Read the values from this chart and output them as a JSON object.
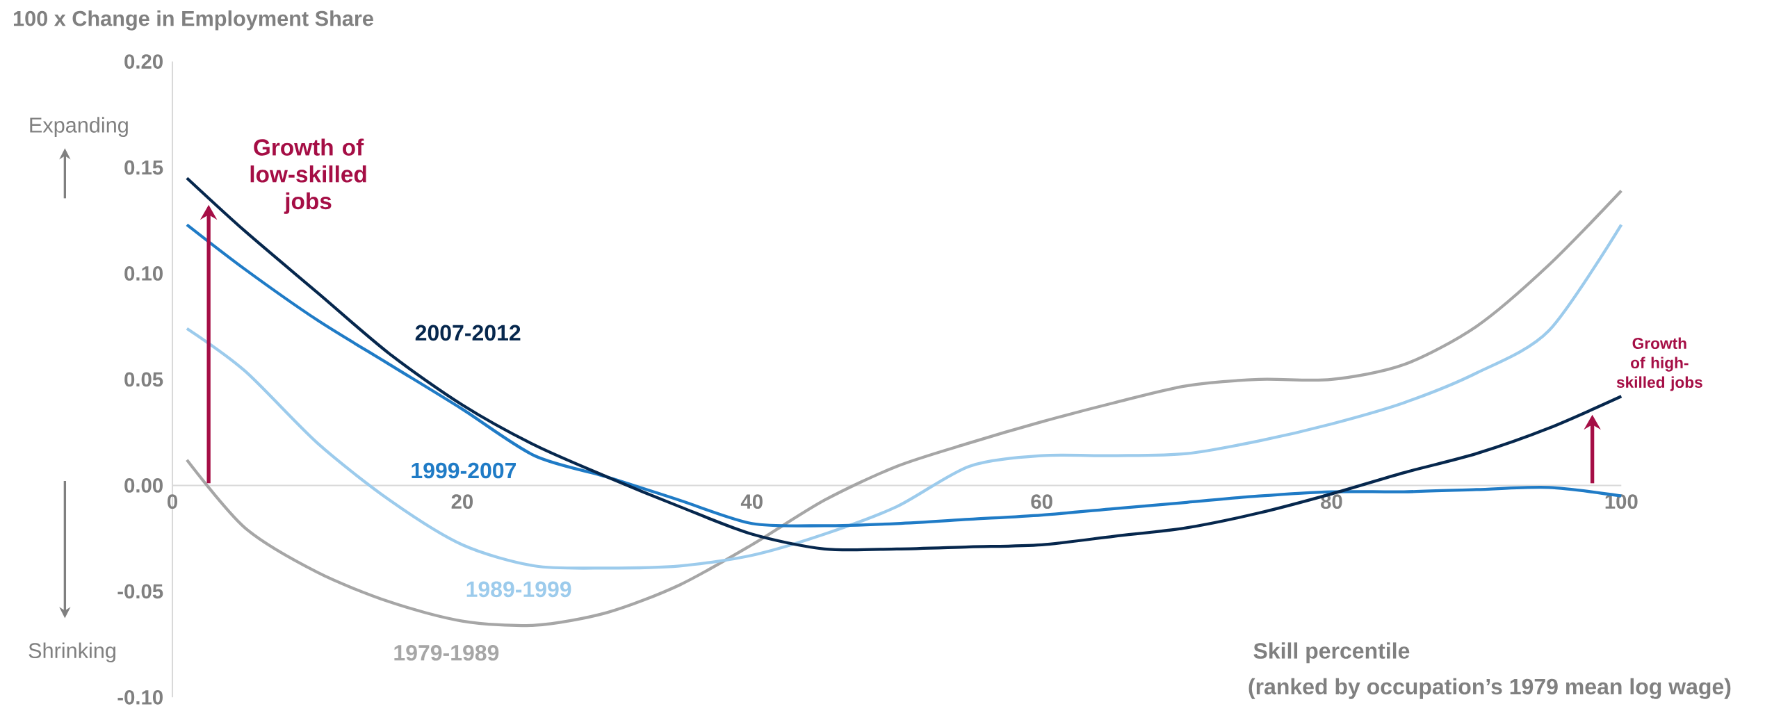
{
  "chart_data": {
    "type": "line",
    "ylabel": "100 x Change in Employment Share",
    "xlabel": "Skill percentile",
    "x": [
      1,
      5,
      10,
      15,
      20,
      25,
      30,
      35,
      40,
      45,
      50,
      55,
      60,
      65,
      70,
      75,
      80,
      85,
      90,
      95,
      100
    ],
    "series": [
      {
        "name": "1979-1989",
        "color": "#a6a6a6",
        "values": [
          0.012,
          -0.02,
          -0.041,
          -0.055,
          -0.064,
          -0.066,
          -0.06,
          -0.047,
          -0.028,
          -0.007,
          0.009,
          0.02,
          0.03,
          0.039,
          0.047,
          0.05,
          0.05,
          0.057,
          0.075,
          0.104,
          0.139
        ]
      },
      {
        "name": "1989-1999",
        "color": "#9ccbec",
        "values": [
          0.074,
          0.054,
          0.02,
          -0.007,
          -0.028,
          -0.038,
          -0.039,
          -0.038,
          -0.033,
          -0.023,
          -0.01,
          0.009,
          0.014,
          0.014,
          0.015,
          0.021,
          0.029,
          0.039,
          0.053,
          0.073,
          0.123
        ]
      },
      {
        "name": "1999-2007",
        "color": "#1f7bc6",
        "values": [
          0.123,
          0.102,
          0.078,
          0.057,
          0.036,
          0.014,
          0.004,
          -0.007,
          -0.018,
          -0.019,
          -0.018,
          -0.016,
          -0.014,
          -0.011,
          -0.008,
          -0.005,
          -0.003,
          -0.003,
          -0.002,
          -0.001,
          -0.005
        ]
      },
      {
        "name": "2007-2012",
        "color": "#06274d",
        "values": [
          0.145,
          0.12,
          0.091,
          0.062,
          0.038,
          0.019,
          0.004,
          -0.01,
          -0.023,
          -0.03,
          -0.03,
          -0.029,
          -0.028,
          -0.024,
          -0.02,
          -0.013,
          -0.004,
          0.006,
          0.015,
          0.027,
          0.042
        ]
      }
    ],
    "marker": "none",
    "xlim": [
      0,
      100
    ],
    "xticks": [
      0,
      20,
      40,
      60,
      80,
      100
    ],
    "ylim": [
      -0.1,
      0.2
    ],
    "yticks": [
      {
        "value": -0.1,
        "label": "-0.10"
      },
      {
        "value": -0.05,
        "label": "-0.05"
      },
      {
        "value": 0,
        "label": "0.00"
      },
      {
        "value": 0.05,
        "label": "0.05"
      },
      {
        "value": 0.1,
        "label": "0.10"
      },
      {
        "value": 0.15,
        "label": "0.15"
      },
      {
        "value": 0.2,
        "label": "0.20"
      }
    ],
    "annotations": [
      "Expanding",
      "Shrinking",
      "(ranked by occupation’s 1979 mean log wage)",
      {
        "text": "Growth of low-skilled jobs",
        "x": 2.5,
        "y": 0.135
      },
      {
        "text": "Growth of high-skilled jobs",
        "x": 98,
        "y": 0.036
      }
    ]
  }
}
